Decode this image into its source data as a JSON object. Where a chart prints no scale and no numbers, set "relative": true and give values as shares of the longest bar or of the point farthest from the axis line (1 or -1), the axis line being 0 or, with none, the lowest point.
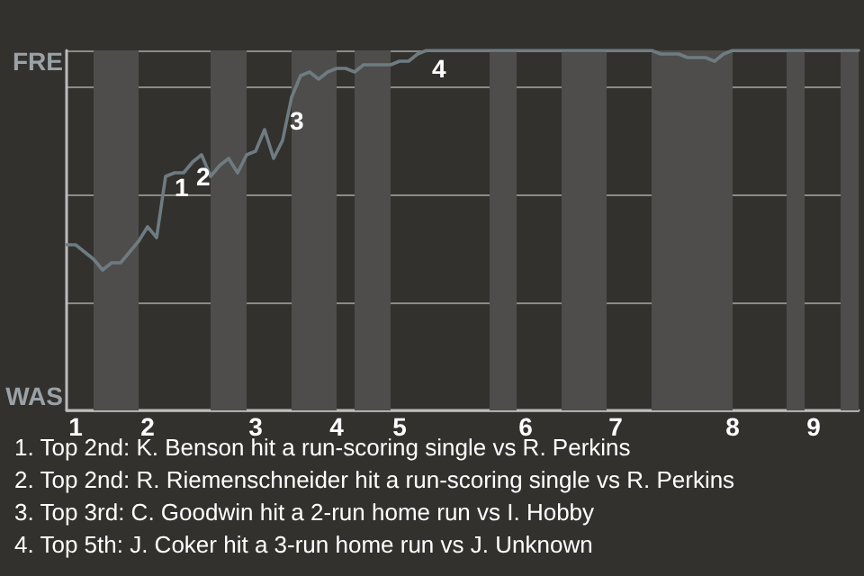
{
  "chart_data": {
    "type": "line",
    "relative": true,
    "categories": [
      null,
      "1",
      null,
      null,
      null,
      null,
      null,
      null,
      null,
      "2",
      null,
      null,
      null,
      null,
      null,
      null,
      null,
      null,
      null,
      null,
      null,
      "3",
      null,
      null,
      null,
      null,
      null,
      null,
      null,
      null,
      "4",
      null,
      null,
      null,
      null,
      null,
      null,
      "5",
      null,
      null,
      null,
      null,
      null,
      null,
      null,
      null,
      null,
      null,
      null,
      null,
      null,
      "6",
      null,
      null,
      null,
      null,
      null,
      null,
      null,
      null,
      null,
      "7",
      null,
      null,
      null,
      null,
      null,
      null,
      null,
      null,
      null,
      null,
      null,
      null,
      "8",
      null,
      null,
      null,
      null,
      null,
      null,
      null,
      null,
      "9",
      null,
      null,
      null,
      null,
      null
    ],
    "values": [
      0.46,
      0.46,
      0.44,
      0.42,
      0.39,
      0.41,
      0.41,
      0.44,
      0.47,
      0.51,
      0.48,
      0.65,
      0.66,
      0.66,
      0.69,
      0.71,
      0.65,
      0.68,
      0.7,
      0.66,
      0.71,
      0.72,
      0.78,
      0.7,
      0.75,
      0.87,
      0.93,
      0.94,
      0.92,
      0.94,
      0.95,
      0.95,
      0.94,
      0.96,
      0.96,
      0.96,
      0.96,
      0.97,
      0.97,
      0.99,
      1,
      1,
      1,
      1,
      1,
      1,
      1,
      1,
      1,
      1,
      1,
      1,
      1,
      1,
      1,
      1,
      1,
      1,
      1,
      1,
      1,
      1,
      1,
      1,
      1,
      1,
      0.99,
      0.99,
      0.99,
      0.98,
      0.98,
      0.98,
      0.97,
      0.99,
      1,
      1,
      1,
      1,
      1,
      1,
      1,
      1,
      1,
      1,
      1,
      1,
      1,
      1,
      1
    ],
    "color": "#6e7c82",
    "marker": "none",
    "line_style": "solid",
    "grid": "y",
    "annotations": [
      "FRE",
      "WAS",
      "1",
      "2",
      "3",
      "4",
      "1. Top 2nd: K. Benson hit a run-scoring single vs R. Perkins",
      "2. Top 2nd: R. Riemenschneider hit a run-scoring single vs R. Perkins",
      "3. Top 3rd: C. Goodwin hit a 2-run home run vs I. Hobby",
      "4. Top 5th: J. Coker hit a 3-run home run vs J. Unknown"
    ]
  }
}
